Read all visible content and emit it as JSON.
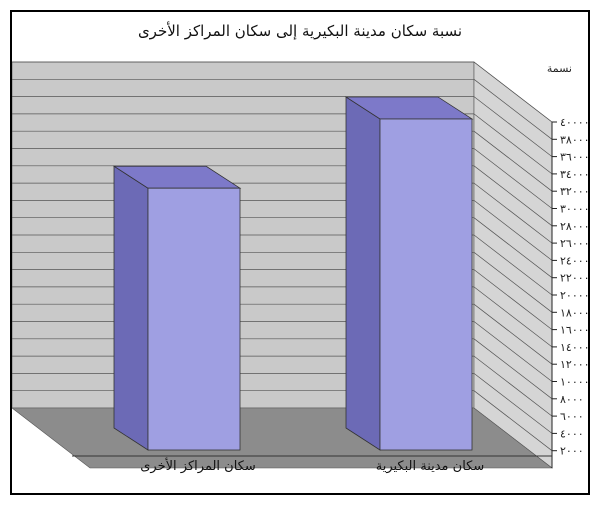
{
  "chart_data": {
    "type": "bar",
    "title": "نسبة سكان مدينة البكيرية إلى سكان المراكز الأخرى",
    "ylabel": "نسمة",
    "categories": [
      "سكان مدينة البكيرية",
      "سكان المراكز الأخرى"
    ],
    "values": [
      38500,
      30500
    ],
    "ylim": [
      0,
      40000
    ],
    "yticks": [
      "٤٠٠٠٠",
      "٣٨٠٠٠",
      "٣٦٠٠٠",
      "٣٤٠٠٠",
      "٣٢٠٠٠",
      "٣٠٠٠٠",
      "٢٨٠٠٠",
      "٢٦٠٠٠",
      "٢٤٠٠٠",
      "٢٢٠٠٠",
      "٢٠٠٠٠",
      "١٨٠٠٠",
      "١٦٠٠٠",
      "١٤٠٠٠",
      "١٢٠٠٠",
      "١٠٠٠٠",
      "٨٠٠٠",
      "٦٠٠٠",
      "٤٠٠٠",
      "٢٠٠٠"
    ],
    "grid": true,
    "colors": {
      "front": "#9f9fe2",
      "side": "#6c6ab6",
      "top": "#7d79c9",
      "back_wall": "#c9c9c9",
      "side_wall": "#d5d5d5",
      "floor": "#8c8c8c"
    }
  }
}
